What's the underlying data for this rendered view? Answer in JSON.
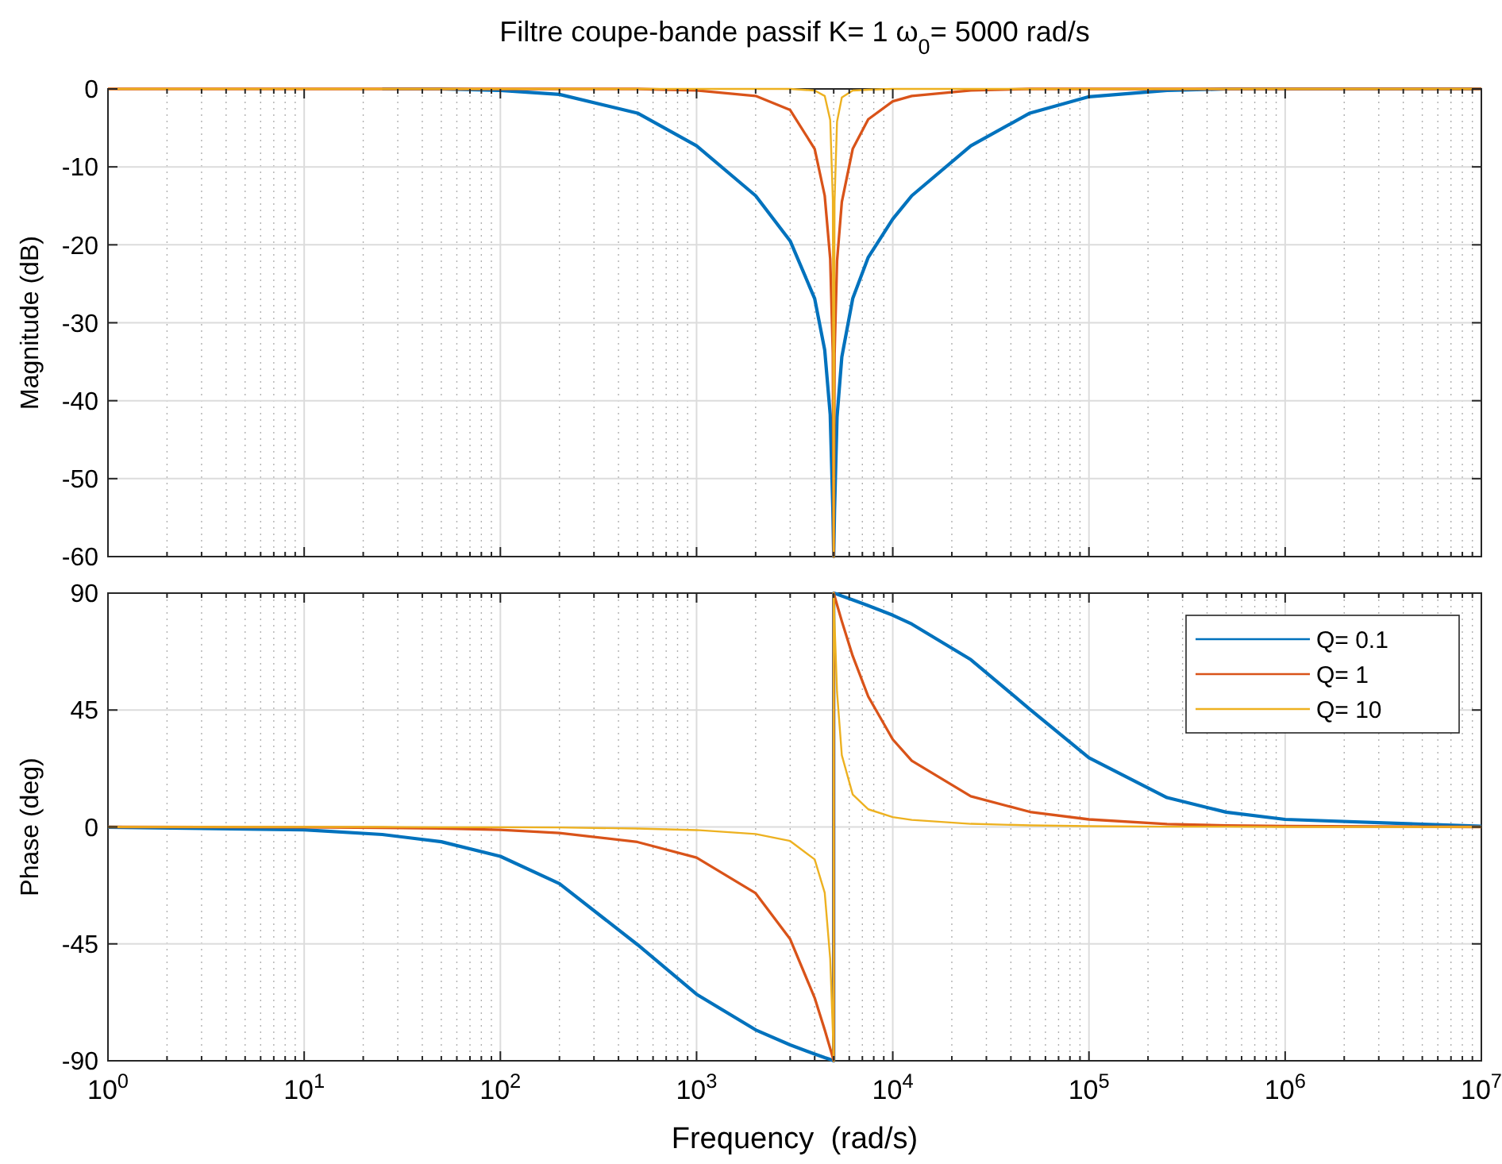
{
  "chart_data": [
    {
      "type": "line",
      "title": "Filtre coupe-bande passif K= 1 ω$_{0}$= 5000 rad/s",
      "ylabel": "Magnitude (dB)",
      "log": "x",
      "grid": true,
      "tick_labels": "y",
      "xlim": [
        1,
        10000000
      ],
      "xticks": [
        {
          "value": 1,
          "label": null
        },
        {
          "value": 10,
          "label": null
        },
        {
          "value": 100,
          "label": null
        },
        {
          "value": 1000,
          "label": null
        },
        {
          "value": 10000,
          "label": null
        },
        {
          "value": 100000,
          "label": null
        },
        {
          "value": 1000000,
          "label": null
        },
        {
          "value": 10000000,
          "label": null
        }
      ],
      "ylim": [
        -60,
        0
      ],
      "yticks": [
        -60,
        -50,
        -40,
        -30,
        -20,
        -10,
        0
      ],
      "x": [
        1,
        10,
        25,
        50,
        100,
        200,
        500,
        1000,
        2000,
        3000,
        4000,
        4500,
        4800,
        4950,
        5000,
        5000,
        5050,
        5200,
        5500,
        6250,
        7500,
        10000,
        12500,
        25000,
        50000,
        100000,
        250000,
        500000,
        1000000,
        10000000
      ],
      "series": [
        {
          "color": "#0072bd",
          "values": [
            null,
            null,
            0,
            0,
            -0.2,
            -0.7,
            -3.1,
            -7.3,
            -13.7,
            -19.5,
            -26.9,
            -33.5,
            -41.8,
            -53.9,
            -60,
            -60,
            -54,
            -42.1,
            -34.4,
            -26.9,
            -21.6,
            -16.7,
            -13.7,
            -7.3,
            -3.1,
            -1,
            -0.2,
            0,
            0,
            0
          ]
        },
        {
          "color": "#d95319",
          "values": [
            0,
            0,
            0,
            0,
            0,
            0,
            0,
            -0.2,
            -0.9,
            -2.7,
            -7.7,
            -13.7,
            -21.8,
            -33.9,
            -60,
            -60,
            -34,
            -22.1,
            -14.5,
            -7.7,
            -3.9,
            -1.6,
            -0.9,
            -0.2,
            0,
            0,
            0,
            0,
            0,
            0
          ]
        },
        {
          "color": "#edb120",
          "values": [
            0,
            0,
            0,
            0,
            0,
            0,
            0,
            0,
            0,
            0,
            -0.2,
            -0.9,
            -4,
            -14.3,
            -60,
            -60,
            -14.4,
            -4.2,
            -1.1,
            -0.2,
            -0.1,
            0,
            0,
            0,
            0,
            0,
            0,
            0,
            0,
            0
          ]
        }
      ]
    },
    {
      "type": "line",
      "xlabel": "Frequency  (rad/s)",
      "ylabel": "Phase (deg)",
      "log": "x",
      "grid": true,
      "legend": "top right",
      "xlim": [
        1,
        10000000
      ],
      "xticks": [
        {
          "value": 1,
          "label": "10$^{0}$"
        },
        {
          "value": 10,
          "label": "10$^{1}$"
        },
        {
          "value": 100,
          "label": "10$^{2}$"
        },
        {
          "value": 1000,
          "label": "10$^{3}$"
        },
        {
          "value": 10000,
          "label": "10$^{4}$"
        },
        {
          "value": 100000,
          "label": "10$^{5}$"
        },
        {
          "value": 1000000,
          "label": "10$^{6}$"
        },
        {
          "value": 10000000,
          "label": "10$^{7}$"
        }
      ],
      "ylim": [
        -90,
        90
      ],
      "yticks": [
        -90,
        -45,
        0,
        45,
        90
      ],
      "x": [
        1,
        10,
        25,
        50,
        100,
        200,
        500,
        1000,
        2000,
        3000,
        4000,
        4500,
        4800,
        4950,
        5000,
        5000,
        5050,
        5200,
        5500,
        6250,
        7500,
        10000,
        12500,
        25000,
        50000,
        100000,
        250000,
        500000,
        1000000,
        10000000
      ],
      "series": [
        {
          "name": "Q= 0.1",
          "color": "#0072bd",
          "values": [
            -0.1,
            -1.1,
            -2.9,
            -5.7,
            -11.3,
            -21.8,
            -45.3,
            -64.4,
            -78.1,
            -83.9,
            -87.4,
            -88.8,
            -89.5,
            -89.9,
            -90,
            90,
            89.9,
            89.6,
            88.9,
            87.4,
            85.2,
            81.5,
            78.1,
            64.4,
            45.3,
            26.6,
            11.3,
            5.7,
            2.9,
            0.3
          ]
        },
        {
          "name": "Q= 1",
          "color": "#d95319",
          "values": [
            0,
            -0.1,
            -0.3,
            -0.6,
            -1.1,
            -2.3,
            -5.8,
            -11.8,
            -25.5,
            -43.2,
            -65.8,
            -78.1,
            -85.3,
            -88.8,
            -90,
            90,
            88.9,
            85.5,
            79.2,
            65.8,
            50.2,
            33.7,
            25.5,
            11.8,
            5.8,
            2.9,
            1.1,
            0.6,
            0.3,
            0
          ]
        },
        {
          "name": "Q= 10",
          "color": "#edb120",
          "values": [
            0,
            0,
            0,
            -0.1,
            -0.1,
            -0.2,
            -0.6,
            -1.2,
            -2.7,
            -5.4,
            -12.5,
            -25.3,
            -50.8,
            -78.6,
            -90,
            90,
            78.7,
            51.9,
            27.6,
            12.5,
            6.8,
            3.8,
            2.7,
            1.2,
            0.6,
            0.3,
            0.1,
            0.1,
            0,
            0
          ]
        }
      ]
    }
  ]
}
